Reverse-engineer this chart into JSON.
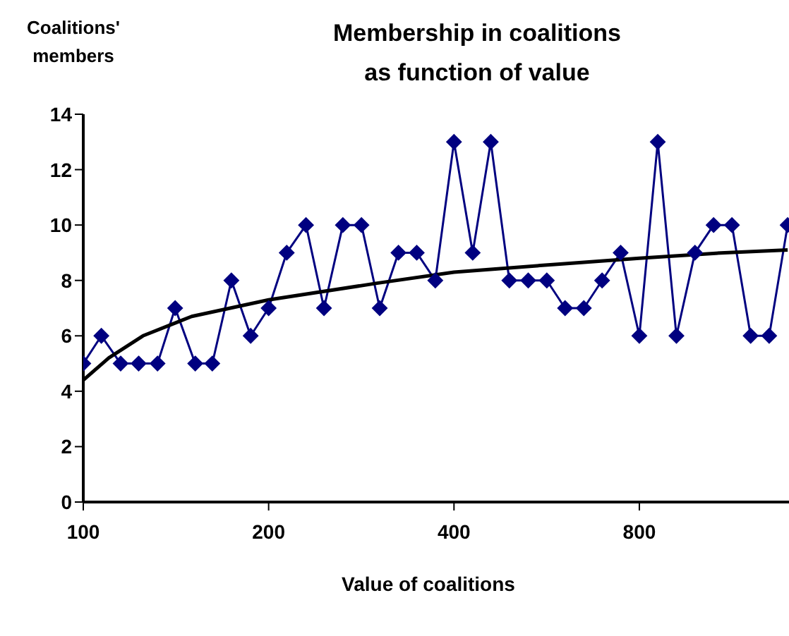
{
  "chart_data": {
    "type": "line",
    "title": "Membership in coalitions as function of value",
    "xlabel": "Value of coalitions",
    "ylabel": "Coalitions' members",
    "log": "x",
    "xlim": [
      100,
      1400
    ],
    "xticks": [
      100,
      200,
      400,
      800
    ],
    "ylim": [
      0,
      14
    ],
    "yticks": [
      0,
      2,
      4,
      6,
      8,
      10,
      12,
      14
    ],
    "x": [
      100,
      107,
      115,
      123,
      132,
      141,
      152,
      162,
      174,
      187,
      200,
      214,
      230,
      246,
      264,
      283,
      303,
      325,
      348,
      373,
      400,
      429,
      459,
      492,
      528,
      566,
      606,
      650,
      696,
      746,
      800,
      857,
      919,
      985,
      1056,
      1131,
      1213,
      1300,
      1393
    ],
    "series": [
      {
        "color": "#000080",
        "marker": "diamond",
        "values": [
          5,
          6,
          5,
          5,
          5,
          7,
          5,
          5,
          8,
          6,
          7,
          9,
          10,
          7,
          10,
          10,
          7,
          9,
          9,
          8,
          13,
          9,
          13,
          8,
          8,
          8,
          7,
          7,
          8,
          9,
          6,
          13,
          6,
          9,
          10,
          10,
          6,
          6,
          10
        ]
      },
      {
        "color": "#000000",
        "marker": "none",
        "x": [
          100,
          110,
          125,
          150,
          200,
          300,
          400,
          600,
          800,
          1100,
          1393
        ],
        "values": [
          4.4,
          5.2,
          6.0,
          6.7,
          7.3,
          7.9,
          8.3,
          8.6,
          8.8,
          9.0,
          9.1
        ]
      }
    ]
  }
}
